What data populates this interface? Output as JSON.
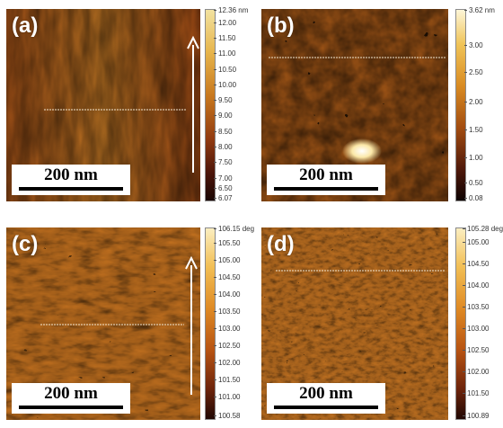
{
  "panels": [
    {
      "label": "(a)",
      "scale_label": "200 nm",
      "colorbar": {
        "max_label": "12.36 nm",
        "ticks": [
          "12.00",
          "11.50",
          "11.00",
          "10.50",
          "10.00",
          "9.50",
          "9.00",
          "8.50",
          "8.00",
          "7.50",
          "7.00",
          "6.50"
        ],
        "min_label": "6.07",
        "colors": [
          "#f2e2a0",
          "#e7b54c",
          "#c8781e",
          "#913a10",
          "#4e160a",
          "#1a0603"
        ]
      },
      "has_scan_arrow": true
    },
    {
      "label": "(b)",
      "scale_label": "200 nm",
      "colorbar": {
        "max_label": "3.62 nm",
        "ticks": [
          "3.00",
          "2.50",
          "2.00",
          "1.50",
          "1.00",
          "0.50"
        ],
        "min_label": "0.08",
        "colors": [
          "#fdf6d8",
          "#f0c458",
          "#d98b22",
          "#a24c10",
          "#4e180a",
          "#0e0302"
        ]
      },
      "has_scan_arrow": false
    },
    {
      "label": "(c)",
      "scale_label": "200 nm",
      "colorbar": {
        "max_label": "106.15 deg",
        "ticks": [
          "105.50",
          "105.00",
          "104.50",
          "104.00",
          "103.50",
          "103.00",
          "102.50",
          "102.00",
          "101.50",
          "101.00"
        ],
        "min_label": "100.58",
        "colors": [
          "#fbeec0",
          "#f2bf55",
          "#df8a24",
          "#b75312",
          "#6e240b",
          "#200804"
        ]
      },
      "has_scan_arrow": true
    },
    {
      "label": "(d)",
      "scale_label": "200 nm",
      "colorbar": {
        "max_label": "105.28 deg",
        "ticks": [
          "105.00",
          "104.50",
          "104.00",
          "103.50",
          "103.00",
          "102.50",
          "102.00",
          "101.50"
        ],
        "min_label": "100.89",
        "colors": [
          "#fbeec0",
          "#f2bf55",
          "#df8a24",
          "#b75312",
          "#6e240b",
          "#200804"
        ]
      },
      "has_scan_arrow": false
    }
  ]
}
